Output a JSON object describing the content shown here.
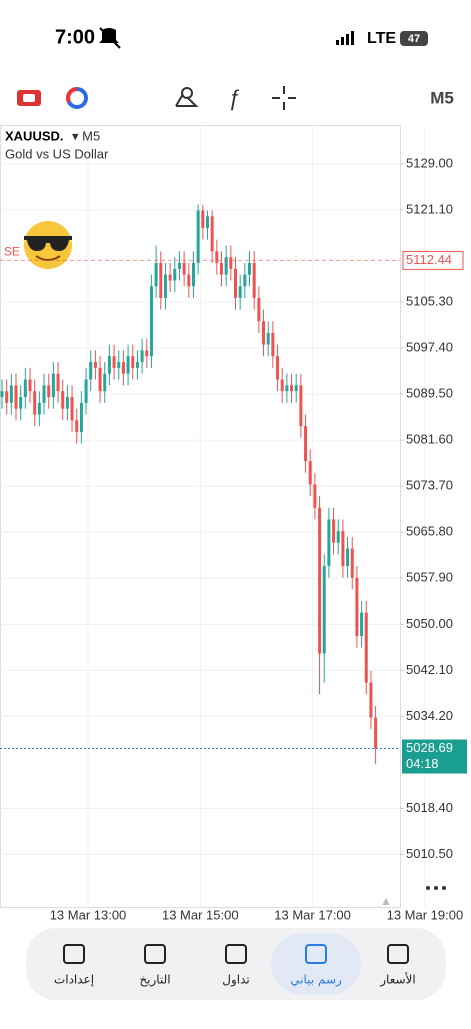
{
  "status_bar": {
    "time": "7:00",
    "network": "LTE",
    "battery": "47"
  },
  "toolbar": {
    "timeframe": "M5"
  },
  "chart_data": {
    "type": "candlestick",
    "symbol": "XAUUSD.",
    "timeframe": "▾ M5",
    "subtitle": "Gold vs US Dollar",
    "x": [
      "13 Mar 11:30",
      "13 Mar 11:35",
      "13 Mar 11:40",
      "13 Mar 11:45",
      "13 Mar 11:50",
      "13 Mar 11:55",
      "13 Mar 12:00",
      "13 Mar 12:05",
      "13 Mar 12:10",
      "13 Mar 12:15",
      "13 Mar 12:20",
      "13 Mar 12:25",
      "13 Mar 12:30",
      "13 Mar 12:35",
      "13 Mar 12:40",
      "13 Mar 12:45",
      "13 Mar 12:50",
      "13 Mar 12:55",
      "13 Mar 13:00",
      "13 Mar 13:05",
      "13 Mar 13:10",
      "13 Mar 13:15",
      "13 Mar 13:20",
      "13 Mar 13:25",
      "13 Mar 13:30",
      "13 Mar 13:35",
      "13 Mar 13:40",
      "13 Mar 13:45",
      "13 Mar 13:50",
      "13 Mar 13:55",
      "13 Mar 14:00",
      "13 Mar 14:05",
      "13 Mar 14:10",
      "13 Mar 14:15",
      "13 Mar 14:20",
      "13 Mar 14:25",
      "13 Mar 14:30",
      "13 Mar 14:35",
      "13 Mar 14:40",
      "13 Mar 14:45",
      "13 Mar 14:50",
      "13 Mar 14:55",
      "13 Mar 15:00",
      "13 Mar 15:05",
      "13 Mar 15:10",
      "13 Mar 15:15",
      "13 Mar 15:20",
      "13 Mar 15:25",
      "13 Mar 15:30",
      "13 Mar 15:35",
      "13 Mar 15:40",
      "13 Mar 15:45",
      "13 Mar 15:50",
      "13 Mar 15:55",
      "13 Mar 16:00",
      "13 Mar 16:05",
      "13 Mar 16:10",
      "13 Mar 16:15",
      "13 Mar 16:20",
      "13 Mar 16:25",
      "13 Mar 16:30",
      "13 Mar 16:35",
      "13 Mar 16:40",
      "13 Mar 16:45",
      "13 Mar 16:50",
      "13 Mar 16:55",
      "13 Mar 17:00",
      "13 Mar 17:05",
      "13 Mar 17:10",
      "13 Mar 17:15",
      "13 Mar 17:20",
      "13 Mar 17:25",
      "13 Mar 17:30",
      "13 Mar 17:35",
      "13 Mar 17:40",
      "13 Mar 17:45",
      "13 Mar 17:50",
      "13 Mar 17:55",
      "13 Mar 18:00",
      "13 Mar 18:05",
      "13 Mar 18:10"
    ],
    "open": [
      5089,
      5090,
      5088,
      5091,
      5087,
      5089,
      5092,
      5090,
      5086,
      5088,
      5091,
      5089,
      5093,
      5090,
      5087,
      5089,
      5085,
      5083,
      5088,
      5092,
      5095,
      5094,
      5090,
      5093,
      5096,
      5094,
      5095,
      5093,
      5096,
      5094,
      5095,
      5097,
      5096,
      5108,
      5112,
      5106,
      5110,
      5109,
      5111,
      5112,
      5110,
      5108,
      5112,
      5121,
      5118,
      5120,
      5114,
      5112,
      5110,
      5113,
      5111,
      5106,
      5108,
      5110,
      5112,
      5106,
      5102,
      5098,
      5100,
      5096,
      5092,
      5090,
      5091,
      5090,
      5091,
      5084,
      5078,
      5074,
      5070,
      5045,
      5060,
      5068,
      5064,
      5066,
      5060,
      5063,
      5058,
      5048,
      5052,
      5040,
      5034
    ],
    "high": [
      5092,
      5092,
      5093,
      5093,
      5091,
      5094,
      5094,
      5092,
      5090,
      5093,
      5093,
      5095,
      5095,
      5092,
      5091,
      5091,
      5087,
      5090,
      5094,
      5097,
      5097,
      5096,
      5095,
      5098,
      5098,
      5097,
      5097,
      5098,
      5098,
      5097,
      5099,
      5099,
      5110,
      5115,
      5114,
      5112,
      5112,
      5113,
      5114,
      5114,
      5112,
      5114,
      5122,
      5122,
      5121,
      5121,
      5116,
      5114,
      5115,
      5115,
      5113,
      5110,
      5112,
      5114,
      5114,
      5108,
      5104,
      5102,
      5102,
      5098,
      5094,
      5093,
      5093,
      5093,
      5093,
      5086,
      5080,
      5076,
      5072,
      5062,
      5070,
      5070,
      5068,
      5068,
      5065,
      5065,
      5060,
      5054,
      5054,
      5042,
      5036
    ],
    "low": [
      5087,
      5086,
      5086,
      5085,
      5085,
      5087,
      5088,
      5084,
      5084,
      5086,
      5087,
      5087,
      5088,
      5085,
      5085,
      5083,
      5081,
      5081,
      5086,
      5090,
      5092,
      5088,
      5088,
      5091,
      5092,
      5092,
      5091,
      5091,
      5092,
      5092,
      5093,
      5094,
      5094,
      5106,
      5104,
      5104,
      5107,
      5107,
      5109,
      5108,
      5106,
      5106,
      5110,
      5116,
      5116,
      5112,
      5110,
      5108,
      5108,
      5109,
      5104,
      5104,
      5106,
      5108,
      5104,
      5100,
      5096,
      5096,
      5094,
      5090,
      5088,
      5088,
      5088,
      5088,
      5082,
      5076,
      5072,
      5068,
      5038,
      5040,
      5058,
      5062,
      5062,
      5058,
      5058,
      5056,
      5046,
      5046,
      5038,
      5032,
      5026
    ],
    "close": [
      5090,
      5088,
      5091,
      5087,
      5089,
      5092,
      5090,
      5086,
      5088,
      5091,
      5089,
      5093,
      5090,
      5087,
      5089,
      5085,
      5083,
      5088,
      5092,
      5095,
      5094,
      5090,
      5093,
      5096,
      5094,
      5095,
      5093,
      5096,
      5094,
      5095,
      5097,
      5096,
      5108,
      5112,
      5106,
      5110,
      5109,
      5111,
      5112,
      5110,
      5108,
      5112,
      5121,
      5118,
      5120,
      5114,
      5112,
      5110,
      5113,
      5111,
      5106,
      5108,
      5110,
      5112,
      5106,
      5102,
      5098,
      5100,
      5096,
      5092,
      5090,
      5091,
      5090,
      5091,
      5084,
      5078,
      5074,
      5070,
      5045,
      5060,
      5068,
      5064,
      5066,
      5060,
      5063,
      5058,
      5048,
      5052,
      5040,
      5034,
      5028.69
    ],
    "up_color": "#26a69a",
    "down_color": "#ef5350",
    "ylim": [
      5001.5,
      5135.5
    ],
    "yticks": [
      {
        "value": 5129,
        "label": "5129.00"
      },
      {
        "value": 5121.1,
        "label": "5121.10"
      },
      {
        "value": 5105.3,
        "label": "5105.30"
      },
      {
        "value": 5097.4,
        "label": "5097.40"
      },
      {
        "value": 5089.5,
        "label": "5089.50"
      },
      {
        "value": 5081.6,
        "label": "5081.60"
      },
      {
        "value": 5073.7,
        "label": "5073.70"
      },
      {
        "value": 5065.8,
        "label": "5065.80"
      },
      {
        "value": 5057.9,
        "label": "5057.90"
      },
      {
        "value": 5050,
        "label": "5050.00"
      },
      {
        "value": 5042.1,
        "label": "5042.10"
      },
      {
        "value": 5034.2,
        "label": "5034.20"
      },
      {
        "value": 5018.4,
        "label": "5018.40"
      },
      {
        "value": 5010.5,
        "label": "5010.50"
      }
    ],
    "xtick_labels": [
      "13 Mar 13:00",
      "13 Mar 15:00",
      "13 Mar 17:00",
      "13 Mar 19:00"
    ],
    "grid": true,
    "order_line": {
      "label": "SE",
      "value": 5112.44,
      "color": "#ef5350"
    },
    "price_line": {
      "value": 5028.69,
      "countdown": "04:18",
      "color": "#1a9e8f"
    }
  },
  "nav": {
    "items": [
      "الأسعار",
      "رسم بياني",
      "تداول",
      "التاريخ",
      "إعدادات"
    ],
    "active": 1
  }
}
